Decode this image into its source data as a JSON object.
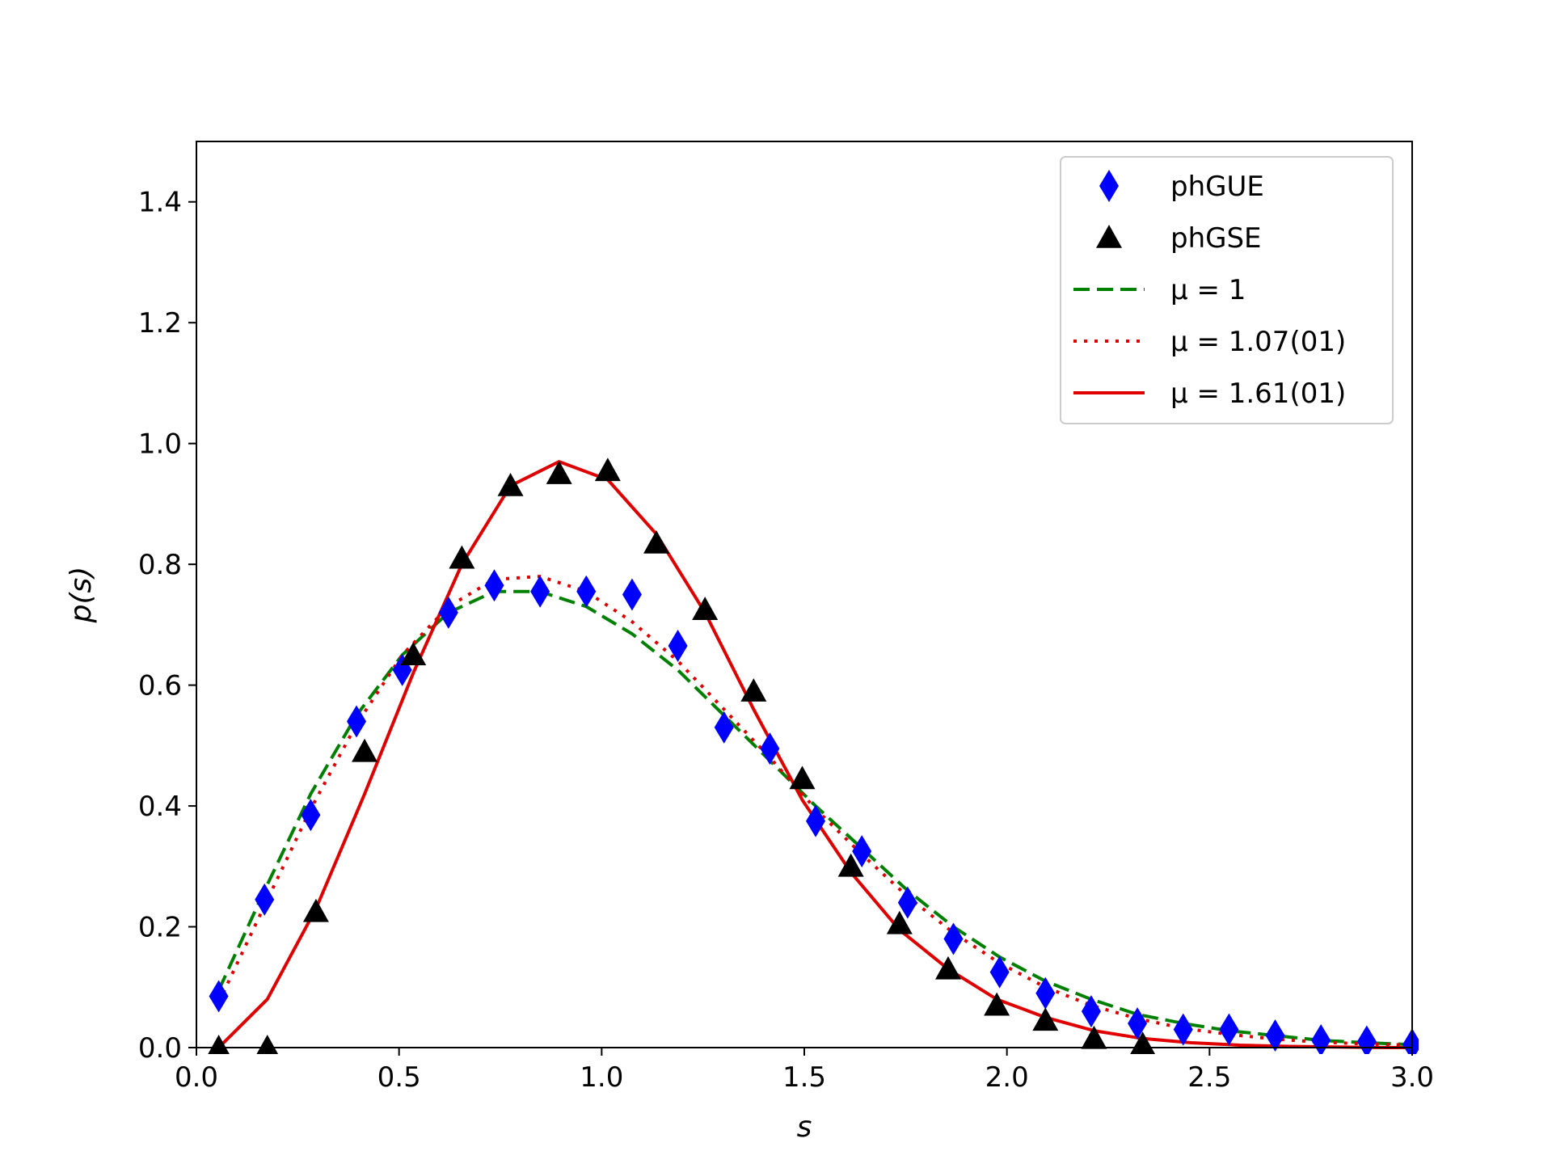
{
  "chart_data": {
    "type": "line",
    "xlabel": "s",
    "ylabel": "p(s)",
    "xlim": [
      0.0,
      3.0
    ],
    "ylim": [
      0.0,
      1.5
    ],
    "xticks": [
      "0.0",
      "0.5",
      "1.0",
      "1.5",
      "2.0",
      "2.5",
      "3.0"
    ],
    "yticks": [
      "0.0",
      "0.2",
      "0.4",
      "0.6",
      "0.8",
      "1.0",
      "1.2",
      "1.4"
    ],
    "grid": false,
    "legend_position": "top-right",
    "series": [
      {
        "name": "phGUE",
        "kind": "scatter",
        "marker": "diamond",
        "color": "#0000ff",
        "x": [
          0.055,
          0.168,
          0.282,
          0.395,
          0.508,
          0.622,
          0.735,
          0.848,
          0.962,
          1.075,
          1.188,
          1.302,
          1.415,
          1.528,
          1.642,
          1.755,
          1.868,
          1.982,
          2.095,
          2.208,
          2.322,
          2.435,
          2.548,
          2.662,
          2.775,
          2.888,
          3.0
        ],
        "y": [
          0.085,
          0.245,
          0.385,
          0.54,
          0.625,
          0.72,
          0.765,
          0.755,
          0.755,
          0.75,
          0.665,
          0.53,
          0.495,
          0.375,
          0.325,
          0.24,
          0.18,
          0.125,
          0.09,
          0.06,
          0.04,
          0.03,
          0.03,
          0.02,
          0.012,
          0.01,
          0.005
        ]
      },
      {
        "name": "phGSE",
        "kind": "scatter",
        "marker": "triangle",
        "color": "#000000",
        "x": [
          0.055,
          0.175,
          0.295,
          0.415,
          0.535,
          0.655,
          0.775,
          0.895,
          1.015,
          1.135,
          1.255,
          1.375,
          1.495,
          1.615,
          1.735,
          1.855,
          1.975,
          2.095,
          2.215,
          2.335
        ],
        "y": [
          0.0,
          0.0,
          0.225,
          0.49,
          0.65,
          0.81,
          0.93,
          0.95,
          0.955,
          0.835,
          0.725,
          0.59,
          0.445,
          0.3,
          0.205,
          0.13,
          0.07,
          0.045,
          0.015,
          0.005
        ]
      },
      {
        "name": "μ = 1",
        "kind": "line",
        "style": "dashed",
        "color": "#008000",
        "x": [
          0.055,
          0.168,
          0.282,
          0.395,
          0.508,
          0.622,
          0.735,
          0.848,
          0.962,
          1.075,
          1.188,
          1.302,
          1.415,
          1.528,
          1.642,
          1.755,
          1.868,
          1.982,
          2.095,
          2.208,
          2.322,
          2.435,
          2.548,
          2.662,
          2.775,
          2.888,
          3.0
        ],
        "y": [
          0.095,
          0.26,
          0.42,
          0.55,
          0.65,
          0.72,
          0.755,
          0.755,
          0.73,
          0.685,
          0.625,
          0.55,
          0.475,
          0.4,
          0.33,
          0.26,
          0.2,
          0.15,
          0.11,
          0.08,
          0.055,
          0.04,
          0.028,
          0.02,
          0.012,
          0.008,
          0.005
        ]
      },
      {
        "name": "μ = 1.07(01)",
        "kind": "line",
        "style": "dotted",
        "color": "#e00000",
        "x": [
          0.055,
          0.168,
          0.282,
          0.395,
          0.508,
          0.622,
          0.735,
          0.848,
          0.962,
          1.075,
          1.188,
          1.302,
          1.415,
          1.528,
          1.642,
          1.755,
          1.868,
          1.982,
          2.095,
          2.208,
          2.322,
          2.435,
          2.548,
          2.662,
          2.775,
          2.888,
          3.0
        ],
        "y": [
          0.075,
          0.235,
          0.395,
          0.535,
          0.65,
          0.73,
          0.775,
          0.78,
          0.755,
          0.705,
          0.64,
          0.56,
          0.48,
          0.395,
          0.32,
          0.25,
          0.19,
          0.14,
          0.1,
          0.07,
          0.048,
          0.032,
          0.022,
          0.014,
          0.009,
          0.006,
          0.004
        ]
      },
      {
        "name": "μ = 1.61(01)",
        "kind": "line",
        "style": "solid",
        "color": "#e00000",
        "x": [
          0.055,
          0.175,
          0.295,
          0.415,
          0.535,
          0.655,
          0.775,
          0.895,
          1.015,
          1.135,
          1.255,
          1.375,
          1.495,
          1.615,
          1.735,
          1.855,
          1.975,
          2.095,
          2.215,
          2.335,
          2.455,
          2.575,
          2.695,
          2.815,
          2.935,
          3.0
        ],
        "y": [
          0.0,
          0.08,
          0.23,
          0.42,
          0.62,
          0.8,
          0.93,
          0.97,
          0.94,
          0.85,
          0.72,
          0.56,
          0.41,
          0.29,
          0.195,
          0.13,
          0.08,
          0.05,
          0.028,
          0.015,
          0.008,
          0.004,
          0.002,
          0.001,
          0.0,
          0.0
        ]
      }
    ]
  }
}
